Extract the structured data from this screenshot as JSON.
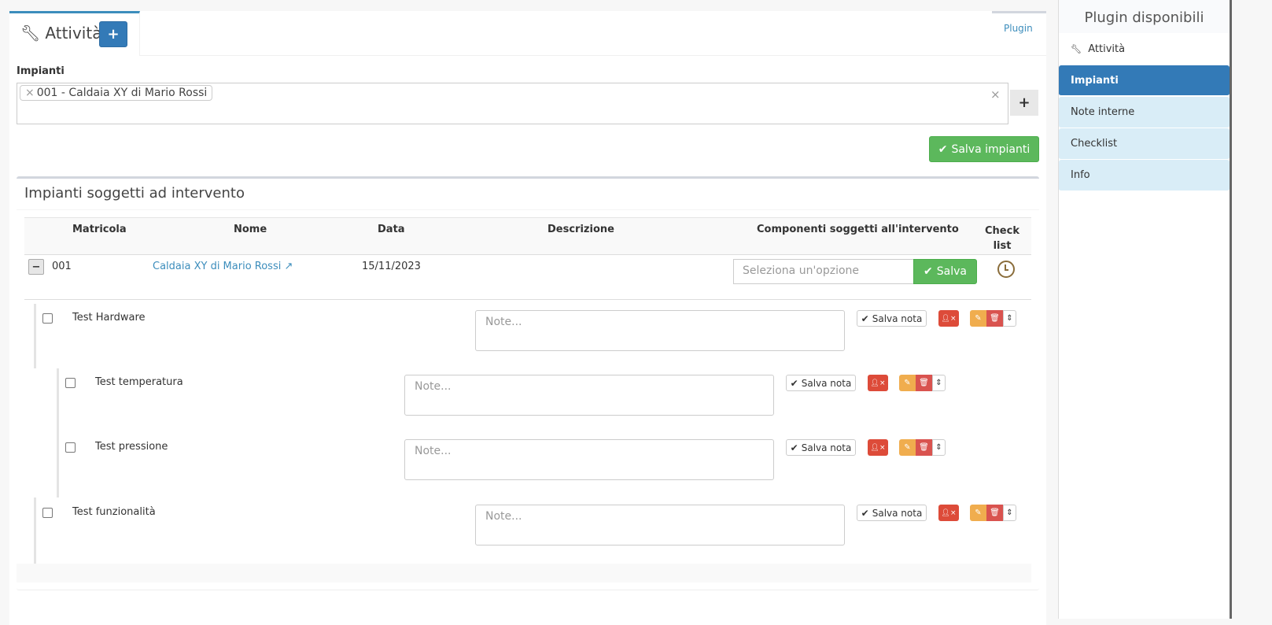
{
  "tabs": {
    "active": "Attività",
    "plugin": "Plugin"
  },
  "form": {
    "label": "Impianti",
    "selected": "001 - Caldaia XY di Mario Rossi",
    "clear": "×",
    "chip_remove": "×",
    "save": "Salva impianti"
  },
  "box": {
    "title": "Impianti soggetti ad intervento",
    "headers": [
      "Matricola",
      "Nome",
      "Data",
      "Descrizione",
      "Componenti soggetti all'intervento",
      "Checklist"
    ],
    "row": {
      "matricola": "001",
      "nome": "Caldaia XY di Mario Rossi",
      "data": "15/11/2023",
      "descrizione": "",
      "placeholder": "Seleziona un'opzione",
      "save": "Salva"
    }
  },
  "checklist": [
    {
      "label": "Test Hardware",
      "level": 0,
      "checked": false,
      "note_placeholder": "Note...",
      "save": "Salva nota"
    },
    {
      "label": "Test temperatura",
      "level": 1,
      "checked": false,
      "note_placeholder": "Note...",
      "save": "Salva nota"
    },
    {
      "label": "Test pressione",
      "level": 1,
      "checked": false,
      "note_placeholder": "Note...",
      "save": "Salva nota"
    },
    {
      "label": "Test funzionalità",
      "level": 0,
      "checked": false,
      "note_placeholder": "Note...",
      "save": "Salva nota"
    }
  ],
  "sidebar": {
    "title": "Plugin disponibili",
    "items": [
      {
        "label": "Attività",
        "icon": "wrench-icon"
      },
      {
        "label": "Impianti",
        "active": true
      },
      {
        "label": "Note interne"
      },
      {
        "label": "Checklist"
      },
      {
        "label": "Info"
      }
    ]
  },
  "colors": {
    "primary": "#337ab7",
    "success": "#5cb85c",
    "danger": "#dd4b39",
    "warning": "#f0ad4e",
    "info_bg": "#d9edf7"
  }
}
